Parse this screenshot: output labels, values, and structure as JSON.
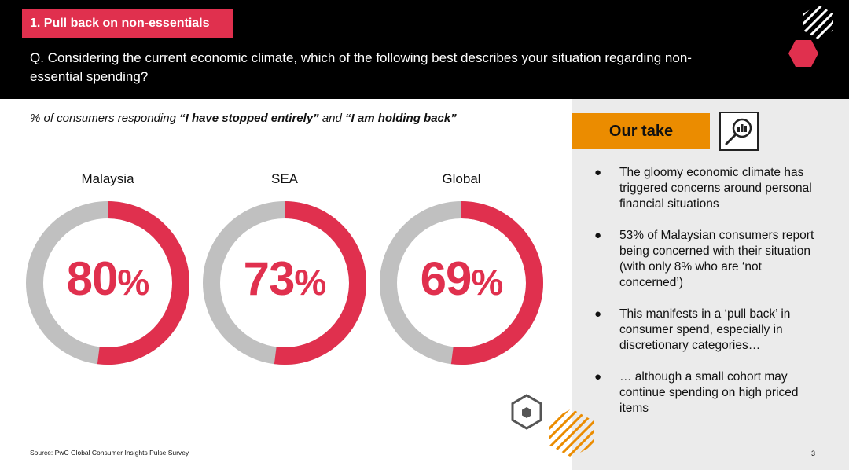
{
  "header": {
    "section_tag": "1. Pull back on non-essentials",
    "question": "Q. Considering the current economic climate, which of the following best describes your situation regarding non-essential spending?"
  },
  "subtitle": {
    "prefix": "% of consumers responding ",
    "quote1": "“I have stopped entirely”",
    "middle": " and ",
    "quote2": "“I am holding back”"
  },
  "colors": {
    "accent": "#e0304e",
    "ring_background": "#c0c0c0",
    "our_take": "#eb8c00",
    "header_bg": "#000000"
  },
  "chart_data": {
    "type": "donut",
    "categories": [
      "Malaysia",
      "SEA",
      "Global"
    ],
    "values": [
      80,
      73,
      69
    ],
    "unit": "%",
    "display_values": [
      "80",
      "73",
      "69"
    ],
    "ring_split_note_visible": false
  },
  "panel": {
    "our_take_label": "Our take",
    "bullets": [
      "The gloomy economic climate has triggered concerns around personal financial situations",
      "53% of Malaysian consumers report being concerned with their situation (with only 8% who are ‘not concerned’)",
      "This manifests in a ‘pull back’ in consumer spend, especially in discretionary categories…",
      "… although a small cohort may continue spending on high priced items"
    ],
    "bullet_symbol": "●",
    "icon": "magnifier-chart-icon"
  },
  "footer": {
    "source": "Source: PwC Global Consumer Insights Pulse Survey",
    "page_number": "3"
  }
}
